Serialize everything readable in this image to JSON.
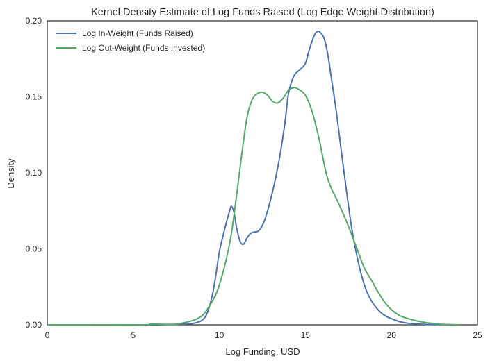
{
  "chart_data": {
    "type": "line",
    "title": "Kernel Density Estimate of Log Funds Raised (Log Edge Weight Distribution)",
    "xlabel": "Log Funding, USD",
    "ylabel": "Density",
    "xlim": [
      0,
      25
    ],
    "ylim": [
      0,
      0.2
    ],
    "x_ticks": [
      0,
      5,
      10,
      15,
      20,
      25
    ],
    "x_tick_labels": [
      "0",
      "5",
      "10",
      "15",
      "20",
      "25"
    ],
    "y_ticks": [
      0,
      0.05,
      0.1,
      0.15,
      0.2
    ],
    "y_tick_labels": [
      "0.00",
      "0.05",
      "0.10",
      "0.15",
      "0.20"
    ],
    "grid": false,
    "legend_position": "top-left",
    "series": [
      {
        "name": "Log In-Weight (Funds Raised)",
        "color": "#4c72b0",
        "points": [
          [
            0,
            0
          ],
          [
            6,
            0
          ],
          [
            8,
            0.0005
          ],
          [
            8.5,
            0.001
          ],
          [
            9,
            0.003
          ],
          [
            9.3,
            0.008
          ],
          [
            9.6,
            0.02
          ],
          [
            9.8,
            0.033
          ],
          [
            10,
            0.048
          ],
          [
            10.2,
            0.058
          ],
          [
            10.4,
            0.067
          ],
          [
            10.6,
            0.075
          ],
          [
            10.7,
            0.078
          ],
          [
            10.85,
            0.074
          ],
          [
            11,
            0.064
          ],
          [
            11.2,
            0.055
          ],
          [
            11.4,
            0.053
          ],
          [
            11.6,
            0.057
          ],
          [
            11.8,
            0.06
          ],
          [
            12,
            0.061
          ],
          [
            12.3,
            0.062
          ],
          [
            12.6,
            0.068
          ],
          [
            12.9,
            0.079
          ],
          [
            13.2,
            0.093
          ],
          [
            13.5,
            0.11
          ],
          [
            13.8,
            0.132
          ],
          [
            14,
            0.151
          ],
          [
            14.2,
            0.16
          ],
          [
            14.4,
            0.165
          ],
          [
            14.7,
            0.168
          ],
          [
            15,
            0.172
          ],
          [
            15.2,
            0.18
          ],
          [
            15.5,
            0.19
          ],
          [
            15.7,
            0.193
          ],
          [
            15.9,
            0.192
          ],
          [
            16.1,
            0.188
          ],
          [
            16.3,
            0.178
          ],
          [
            16.5,
            0.163
          ],
          [
            16.8,
            0.14
          ],
          [
            17.1,
            0.113
          ],
          [
            17.4,
            0.087
          ],
          [
            17.7,
            0.063
          ],
          [
            18,
            0.045
          ],
          [
            18.3,
            0.031
          ],
          [
            18.6,
            0.021
          ],
          [
            19,
            0.013
          ],
          [
            19.5,
            0.007
          ],
          [
            20,
            0.004
          ],
          [
            20.5,
            0.002
          ],
          [
            21,
            0.001
          ],
          [
            22,
            0.0003
          ],
          [
            24,
            0
          ]
        ]
      },
      {
        "name": "Log Out-Weight (Funds Invested)",
        "color": "#55a868",
        "points": [
          [
            0,
            0
          ],
          [
            5.5,
            0
          ],
          [
            6,
            0.0005
          ],
          [
            7,
            0.0003
          ],
          [
            7.5,
            0.0005
          ],
          [
            8,
            0.0015
          ],
          [
            8.5,
            0.003
          ],
          [
            9,
            0.006
          ],
          [
            9.4,
            0.012
          ],
          [
            9.8,
            0.02
          ],
          [
            10.1,
            0.03
          ],
          [
            10.4,
            0.043
          ],
          [
            10.7,
            0.06
          ],
          [
            11,
            0.085
          ],
          [
            11.3,
            0.112
          ],
          [
            11.6,
            0.136
          ],
          [
            11.9,
            0.148
          ],
          [
            12.2,
            0.152
          ],
          [
            12.5,
            0.153
          ],
          [
            12.8,
            0.151
          ],
          [
            13.1,
            0.147
          ],
          [
            13.4,
            0.146
          ],
          [
            13.7,
            0.149
          ],
          [
            14,
            0.154
          ],
          [
            14.3,
            0.156
          ],
          [
            14.6,
            0.155
          ],
          [
            15,
            0.151
          ],
          [
            15.4,
            0.14
          ],
          [
            15.8,
            0.122
          ],
          [
            16.2,
            0.1
          ],
          [
            16.5,
            0.09
          ],
          [
            16.8,
            0.083
          ],
          [
            17.2,
            0.073
          ],
          [
            17.6,
            0.062
          ],
          [
            18,
            0.05
          ],
          [
            18.4,
            0.038
          ],
          [
            18.8,
            0.03
          ],
          [
            19.2,
            0.022
          ],
          [
            19.6,
            0.015
          ],
          [
            20,
            0.01
          ],
          [
            20.5,
            0.006
          ],
          [
            21,
            0.004
          ],
          [
            21.5,
            0.0025
          ],
          [
            22,
            0.0015
          ],
          [
            22.5,
            0.0008
          ],
          [
            23,
            0.0003
          ],
          [
            24,
            0
          ]
        ]
      }
    ]
  }
}
